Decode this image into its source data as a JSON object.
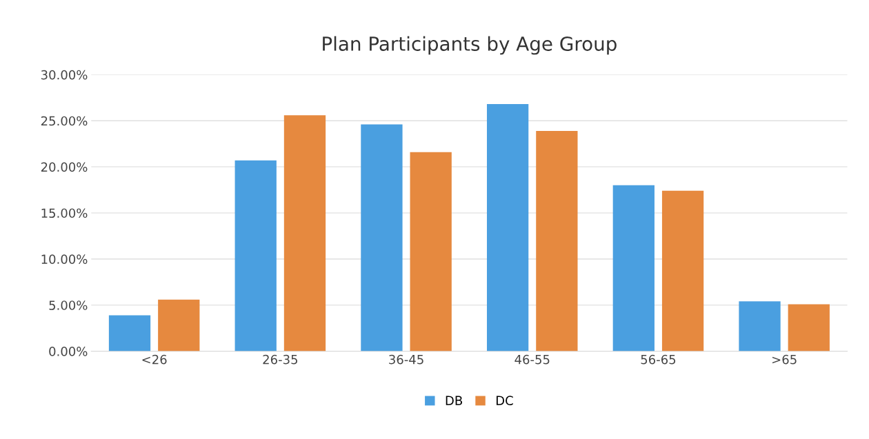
{
  "chart_data": {
    "type": "bar",
    "title": "Plan Participants by Age Group",
    "categories": [
      "<26",
      "26-35",
      "36-45",
      "46-55",
      "56-65",
      ">65"
    ],
    "series": [
      {
        "name": "DB",
        "color": "#4a9fe0",
        "values": [
          3.9,
          20.7,
          24.6,
          26.8,
          18.0,
          5.4
        ]
      },
      {
        "name": "DC",
        "color": "#e6893f",
        "values": [
          5.6,
          25.6,
          21.6,
          23.9,
          17.4,
          5.1
        ]
      }
    ],
    "ylim": [
      0,
      30
    ],
    "yticks": [
      {
        "value": 0,
        "label": "0.00%"
      },
      {
        "value": 5,
        "label": "5.00%"
      },
      {
        "value": 10,
        "label": "10.00%"
      },
      {
        "value": 15,
        "label": "15.00%"
      },
      {
        "value": 20,
        "label": "20.00%"
      },
      {
        "value": 25,
        "label": "25.00%"
      },
      {
        "value": 30,
        "label": "30.00%"
      }
    ],
    "grid": "y",
    "legend": "bottom"
  }
}
